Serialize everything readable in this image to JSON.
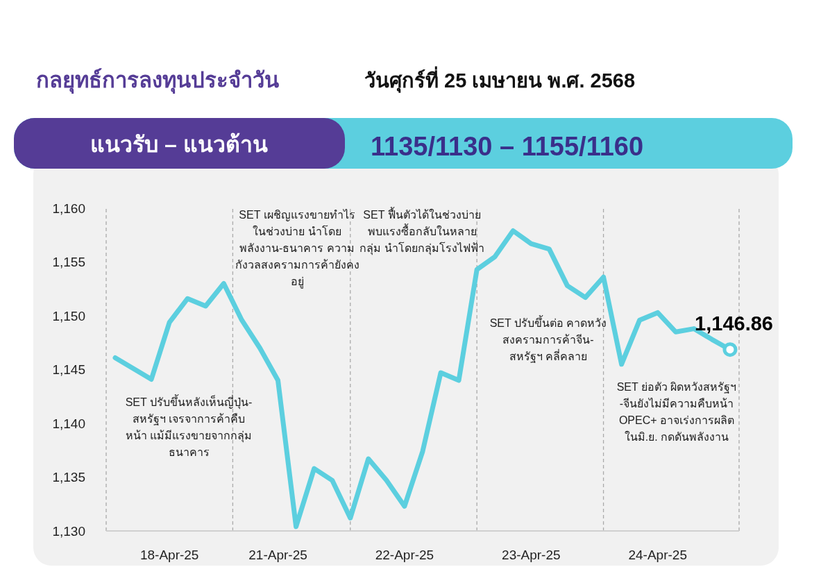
{
  "chart_data": {
    "type": "line",
    "title": "กลยุทธ์การลงทุนประจำวัน",
    "subtitle": "วันศุกร์ที่ 25 เมษายน พ.ศ. 2568",
    "annotations": [
      "แนวรับ – แนวต้าน",
      "1135/1130 – 1155/1160",
      "SET ปรับขึ้นหลังเห็นญี่ปุ่น-สหรัฐฯ เจรจาการค้าคืบหน้า แม้มีแรงขายจากกลุ่มธนาคาร",
      "SET เผชิญแรงขายทำไรในช่วงบ่าย นำโดยพลังงาน-ธนาคาร ความกังวลสงครามการค้ายังคงอยู่",
      "SET ฟื้นตัวได้ในช่วงบ่าย พบแรงซื้อกลับในหลายกลุ่ม นำโดยกลุ่มโรงไฟฟ้า",
      "SET ปรับขึ้นต่อ คาดหวังสงครามการค้าจีน-สหรัฐฯ คลี่คลาย",
      "SET ย่อตัว ผิดหวังสหรัฐฯ -จีนยังไม่มีความคืบหน้า OPEC+ อาจเร่งการผลิตในมิ.ย. กดดันพลังงาน"
    ],
    "categories": [
      null,
      null,
      null,
      "18-Apr-25",
      null,
      null,
      null,
      null,
      null,
      "21-Apr-25",
      null,
      null,
      null,
      null,
      null,
      null,
      "22-Apr-25",
      null,
      null,
      null,
      null,
      null,
      null,
      "23-Apr-25",
      null,
      null,
      null,
      null,
      null,
      null,
      "24-Apr-25",
      null,
      null,
      null,
      null
    ],
    "series": [
      {
        "color": "#5ccfdf",
        "values": [
          1146.1,
          1145.1,
          1144.1,
          1149.4,
          1151.6,
          1150.9,
          1153.0,
          1149.6,
          1147.0,
          1144.0,
          1130.4,
          1135.8,
          1134.7,
          1131.2,
          1136.7,
          1134.7,
          1132.3,
          1137.4,
          1144.7,
          1144.0,
          1154.3,
          1155.5,
          1157.9,
          1156.7,
          1156.2,
          1152.8,
          1151.7,
          1153.6,
          1145.5,
          1149.6,
          1150.3,
          1148.5,
          1148.8,
          1147.8,
          1146.86
        ],
        "value_labels": [
          null,
          null,
          null,
          null,
          null,
          null,
          null,
          null,
          null,
          null,
          null,
          null,
          null,
          null,
          null,
          null,
          null,
          null,
          null,
          null,
          null,
          null,
          null,
          null,
          null,
          null,
          null,
          null,
          null,
          null,
          null,
          null,
          null,
          null,
          "1,146.86"
        ]
      }
    ],
    "ylim": [
      1130,
      1160
    ],
    "yticks": [
      {
        "value": 1130,
        "label": "1,130"
      },
      {
        "value": 1135,
        "label": "1,135"
      },
      {
        "value": 1140,
        "label": "1,140"
      },
      {
        "value": 1145,
        "label": "1,145"
      },
      {
        "value": 1150,
        "label": "1,150"
      },
      {
        "value": 1155,
        "label": "1,155"
      },
      {
        "value": 1160,
        "label": "1,160"
      }
    ],
    "grid": "x"
  }
}
